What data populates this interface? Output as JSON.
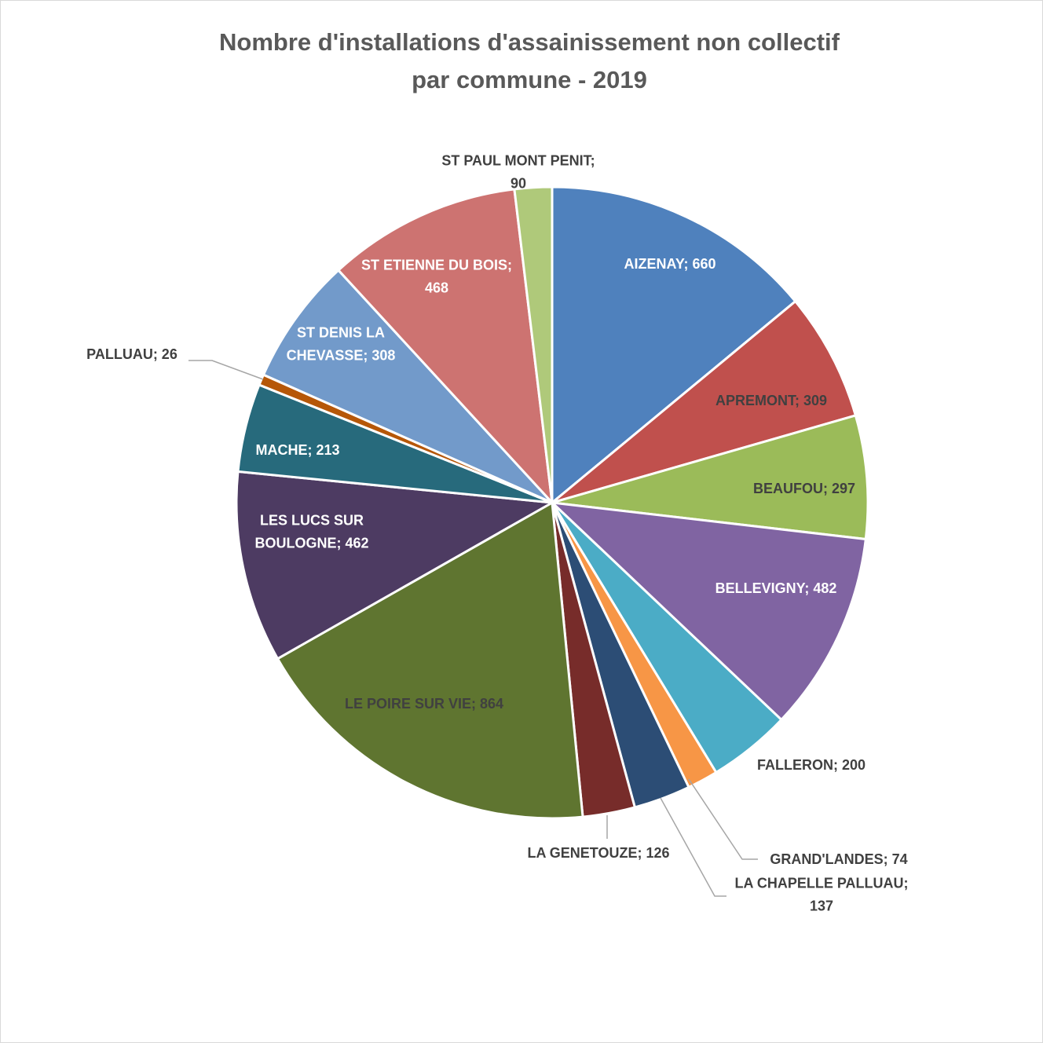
{
  "chart_data": {
    "type": "pie",
    "title_lines": [
      "Nombre d'installations d'assainissement non collectif",
      "par commune - 2019"
    ],
    "categories": [
      "AIZENAY",
      "APREMONT",
      "BEAUFOU",
      "BELLEVIGNY",
      "FALLERON",
      "GRAND'LANDES",
      "LA CHAPELLE PALLUAU",
      "LA GENETOUZE",
      "LE POIRE SUR VIE",
      "LES LUCS SUR BOULOGNE",
      "MACHE",
      "PALLUAU",
      "ST DENIS LA CHEVASSE",
      "ST ETIENNE DU BOIS",
      "ST PAUL MONT PENIT"
    ],
    "values": [
      660,
      309,
      297,
      482,
      200,
      74,
      137,
      126,
      864,
      462,
      213,
      26,
      308,
      468,
      90
    ],
    "colors": [
      "#4f81bd",
      "#c0504d",
      "#9bbb59",
      "#8064a2",
      "#4bacc6",
      "#f79646",
      "#2c4d75",
      "#772c2a",
      "#5f7530",
      "#4d3b62",
      "#276a7c",
      "#b65708",
      "#729aca",
      "#cd7371",
      "#afc97a"
    ],
    "labels": [
      {
        "lines": [
          "AIZENAY; 660"
        ],
        "color": "#ffffff"
      },
      {
        "lines": [
          "APREMONT; 309"
        ],
        "color": "#404040"
      },
      {
        "lines": [
          "BEAUFOU; 297"
        ],
        "color": "#404040"
      },
      {
        "lines": [
          "BELLEVIGNY; 482"
        ],
        "color": "#ffffff"
      },
      {
        "lines": [
          "FALLERON; 200"
        ],
        "color": "#404040"
      },
      {
        "lines": [
          "GRAND'LANDES; 74"
        ],
        "color": "#404040"
      },
      {
        "lines": [
          "LA CHAPELLE PALLUAU;",
          "137"
        ],
        "color": "#404040"
      },
      {
        "lines": [
          "LA GENETOUZE; 126"
        ],
        "color": "#404040"
      },
      {
        "lines": [
          "LE POIRE SUR VIE; 864"
        ],
        "color": "#404040"
      },
      {
        "lines": [
          "LES LUCS SUR",
          "BOULOGNE; 462"
        ],
        "color": "#ffffff"
      },
      {
        "lines": [
          "MACHE; 213"
        ],
        "color": "#ffffff"
      },
      {
        "lines": [
          "PALLUAU; 26"
        ],
        "color": "#404040"
      },
      {
        "lines": [
          "ST DENIS LA",
          "CHEVASSE; 308"
        ],
        "color": "#ffffff"
      },
      {
        "lines": [
          "ST ETIENNE DU BOIS;",
          "468"
        ],
        "color": "#ffffff"
      },
      {
        "lines": [
          "ST PAUL MONT PENIT;",
          "90"
        ],
        "color": "#404040"
      }
    ],
    "legend": "none"
  }
}
